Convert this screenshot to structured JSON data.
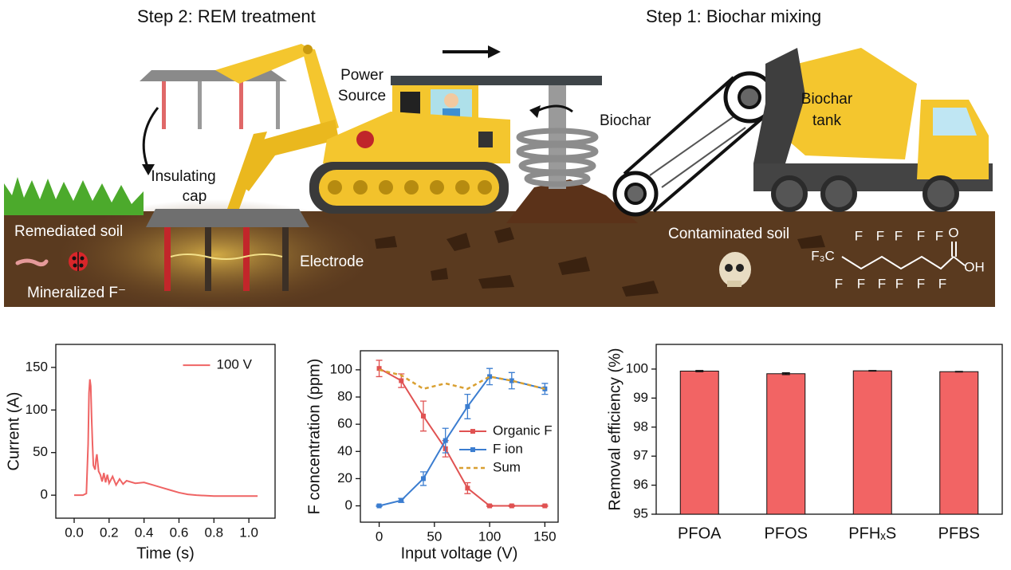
{
  "illustration": {
    "step2_title": "Step 2: REM treatment",
    "step1_title": "Step 1: Biochar mixing",
    "power_source": [
      "Power",
      "Source"
    ],
    "biochar": "Biochar",
    "biochar_tank": [
      "Biochar",
      "tank"
    ],
    "insulating_cap": [
      "Insulating",
      "cap"
    ],
    "remediated_soil": "Remediated soil",
    "mineralized": "Mineralized F⁻",
    "electrode": "Electrode",
    "contaminated_soil": "Contaminated soil",
    "molecule": {
      "top": [
        "F",
        "F",
        "F",
        "F",
        "F",
        "O"
      ],
      "left": "F₃C",
      "bottom": [
        "F",
        "F",
        "F",
        "F",
        "F",
        "F"
      ],
      "right": "OH"
    }
  },
  "chart_data": [
    {
      "type": "line",
      "x_label": "Time (s)",
      "y_label": "Current (A)",
      "x": [
        0,
        0.05,
        0.07,
        0.08,
        0.085,
        0.09,
        0.095,
        0.1,
        0.105,
        0.11,
        0.12,
        0.125,
        0.13,
        0.135,
        0.14,
        0.15,
        0.16,
        0.17,
        0.18,
        0.19,
        0.2,
        0.22,
        0.24,
        0.26,
        0.28,
        0.3,
        0.35,
        0.4,
        0.45,
        0.5,
        0.55,
        0.6,
        0.65,
        0.7,
        0.8,
        0.9,
        1.0,
        1.05
      ],
      "series": [
        {
          "name": "100 V",
          "color": "#ef6464",
          "values": [
            0,
            0,
            2,
            60,
            120,
            136,
            128,
            90,
            60,
            35,
            30,
            42,
            48,
            38,
            28,
            24,
            16,
            26,
            15,
            24,
            14,
            22,
            12,
            19,
            13,
            17,
            14,
            15,
            12,
            9,
            6,
            3,
            1,
            0,
            -1,
            -1,
            -1,
            -1
          ]
        }
      ],
      "xlim": [
        -0.105,
        1.15
      ],
      "ylim": [
        -27,
        177
      ],
      "xticks": [
        {
          "value": 0,
          "label": "0.0"
        },
        0.2,
        0.4,
        0.6,
        0.8,
        {
          "value": 1,
          "label": "1.0"
        }
      ],
      "yticks": [
        0,
        50,
        100,
        150
      ],
      "legend": "upper right"
    },
    {
      "type": "line",
      "x_label": "Input voltage (V)",
      "y_label": "F concentration (ppm)",
      "x": [
        0,
        20,
        40,
        60,
        80,
        100,
        120,
        150
      ],
      "series": [
        {
          "name": "Organic F",
          "color": "#e05252",
          "marker": "square",
          "values": [
            101,
            92,
            66,
            42,
            13,
            0,
            0,
            0
          ],
          "errors": [
            6,
            5,
            11,
            6,
            4,
            0.5,
            0.5,
            0.5
          ]
        },
        {
          "name": "F ion",
          "color": "#3b7dd0",
          "marker": "square",
          "values": [
            0,
            4,
            20,
            48,
            73,
            95,
            92,
            86
          ],
          "errors": [
            0.5,
            1.5,
            5,
            9,
            9,
            6,
            6,
            4
          ]
        },
        {
          "name": "Sum",
          "color": "#d9a032",
          "dash": true,
          "values": [
            100,
            96,
            86,
            90,
            86,
            95,
            92,
            86
          ]
        }
      ],
      "xlim": [
        -17,
        162
      ],
      "ylim": [
        -12,
        114
      ],
      "xticks": [
        0,
        50,
        100,
        150
      ],
      "yticks": [
        0,
        20,
        40,
        60,
        80,
        100
      ],
      "legend": "center right"
    },
    {
      "type": "bar",
      "y_label": "Removal efficiency (%)",
      "categories": [
        "PFOA",
        "PFOS",
        "PFHₓS",
        "PFBS"
      ],
      "values": [
        99.93,
        99.84,
        99.94,
        99.91
      ],
      "errors": [
        0.02,
        0.03,
        0.01,
        0.01
      ],
      "color": "#f26464",
      "ylim": [
        95,
        100.85
      ],
      "yticks": [
        95,
        96,
        97,
        98,
        99,
        100
      ]
    }
  ]
}
